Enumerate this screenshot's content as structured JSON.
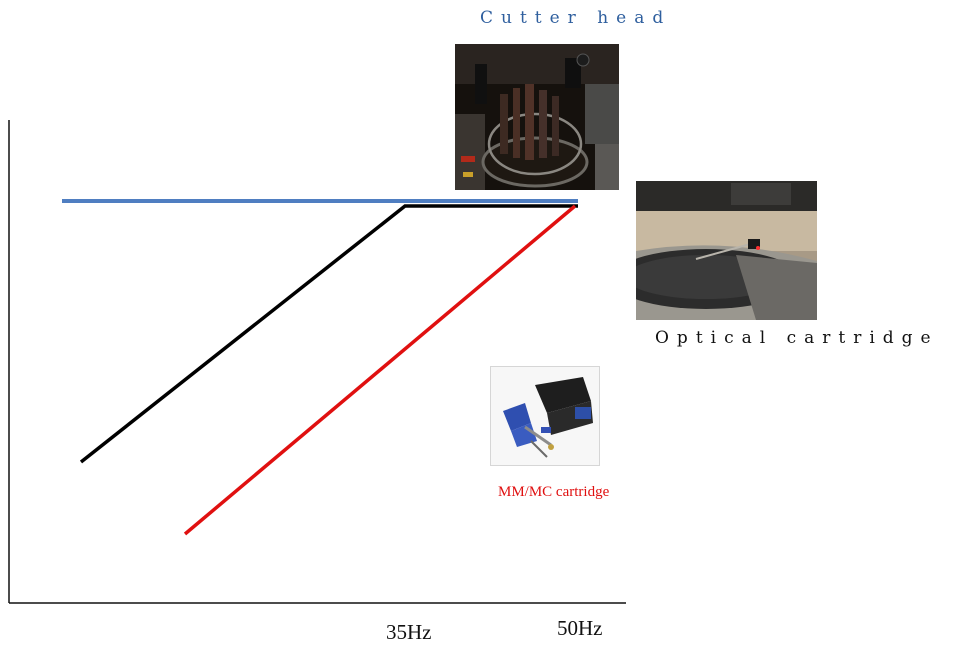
{
  "labels": {
    "cutter_head": "Cutter head",
    "optical_cartridge": "Optical cartridge",
    "mm_mc_cartridge": "MM/MC cartridge"
  },
  "axis": {
    "tick_35": "35Hz",
    "tick_50": "50Hz"
  },
  "colors": {
    "cutter_head": "#4f7ec1",
    "optical_cartridge": "#000000",
    "mm_mc_cartridge": "#e01010",
    "axis": "#111111"
  },
  "images": {
    "cutter_head": "cutter-head-photo",
    "optical_cartridge": "turntable-with-optical-cartridge-photo",
    "mm_mc_cartridge": "mm-mc-cartridge-product-photo"
  }
}
